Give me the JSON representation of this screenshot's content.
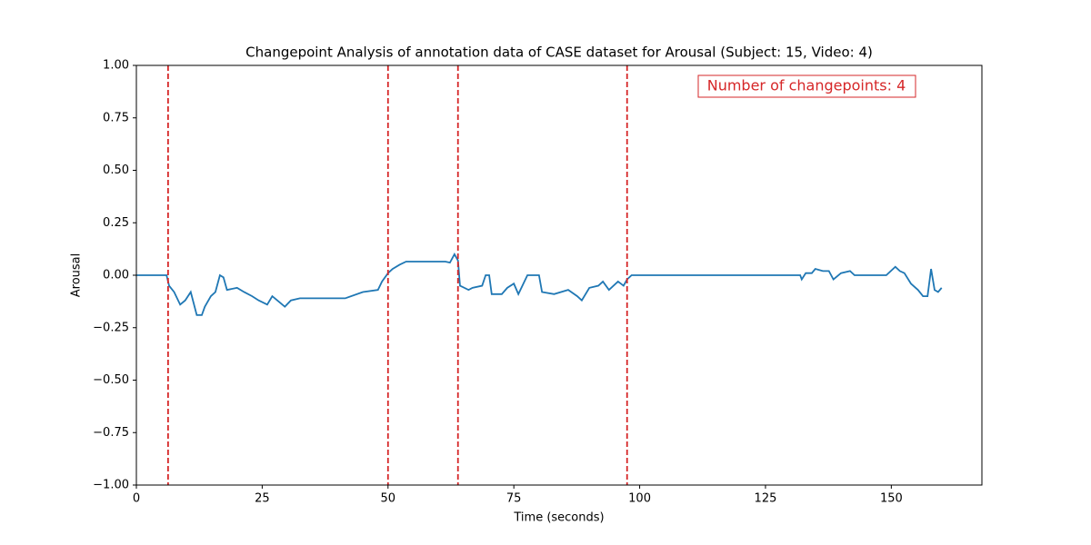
{
  "chart_data": {
    "type": "line",
    "title": "Changepoint Analysis of annotation data of CASE dataset for Arousal (Subject: 15, Video: 4)",
    "xlabel": "Time (seconds)",
    "ylabel": "Arousal",
    "annotation": "Number of changepoints: 4",
    "xlim": [
      0,
      168
    ],
    "ylim": [
      -1,
      1
    ],
    "xticks": [
      0,
      25,
      50,
      75,
      100,
      125,
      150
    ],
    "yticks": [
      {
        "value": -1,
        "label": "−1.00"
      },
      {
        "value": -0.75,
        "label": "−0.75"
      },
      {
        "value": -0.5,
        "label": "−0.50"
      },
      {
        "value": -0.25,
        "label": "−0.25"
      },
      {
        "value": 0,
        "label": "0.00"
      },
      {
        "value": 0.25,
        "label": "0.25"
      },
      {
        "value": 0.5,
        "label": "0.50"
      },
      {
        "value": 0.75,
        "label": "0.75"
      },
      {
        "value": 1,
        "label": "1.00"
      }
    ],
    "series": [
      {
        "color": "#1f77b4",
        "x": [
          0,
          6,
          6.5,
          7.5,
          8.7,
          9.7,
          10.8,
          12,
          13,
          13.6,
          14.8,
          15.7,
          16.6,
          17.3,
          18,
          20,
          21.4,
          23,
          24.3,
          26,
          27,
          28,
          29.5,
          30.7,
          32.5,
          41.5,
          45,
          48,
          48.8,
          50,
          50.9,
          52.3,
          53.6,
          61.4,
          62.3,
          63.2,
          63.9,
          64.3,
          66,
          66.8,
          68.7,
          69.4,
          70.1,
          70.6,
          72.6,
          73.7,
          75,
          75.9,
          77.7,
          80,
          80.6,
          83,
          85.8,
          87.6,
          88.5,
          90,
          91.8,
          92.7,
          93.9,
          95.7,
          96.8,
          97.5,
          98.4,
          131.9,
          132.2,
          133,
          134.2,
          134.9,
          136.4,
          137.6,
          138.5,
          140,
          141.8,
          142.7,
          149,
          150.8,
          151.7,
          152.6,
          153.9,
          155.3,
          156.3,
          157.2,
          157.9,
          158.6,
          159.3,
          160
        ],
        "values": [
          0,
          0,
          -0.05,
          -0.08,
          -0.14,
          -0.12,
          -0.08,
          -0.19,
          -0.19,
          -0.15,
          -0.1,
          -0.08,
          0,
          -0.01,
          -0.07,
          -0.06,
          -0.08,
          -0.1,
          -0.12,
          -0.14,
          -0.1,
          -0.12,
          -0.15,
          -0.12,
          -0.11,
          -0.11,
          -0.08,
          -0.07,
          -0.03,
          0.01,
          0.03,
          0.05,
          0.065,
          0.065,
          0.06,
          0.1,
          0.07,
          -0.05,
          -0.07,
          -0.06,
          -0.05,
          0,
          0,
          -0.09,
          -0.09,
          -0.06,
          -0.04,
          -0.09,
          0,
          0,
          -0.08,
          -0.09,
          -0.07,
          -0.1,
          -0.12,
          -0.06,
          -0.05,
          -0.03,
          -0.07,
          -0.03,
          -0.05,
          -0.02,
          0,
          0,
          -0.02,
          0.01,
          0.01,
          0.03,
          0.02,
          0.02,
          -0.02,
          0.01,
          0.02,
          0,
          0,
          0.04,
          0.02,
          0.01,
          -0.04,
          -0.07,
          -0.1,
          -0.1,
          0.03,
          -0.07,
          -0.08,
          -0.06
        ]
      }
    ],
    "changepoints": [
      6.3,
      50,
      63.9,
      97.5
    ],
    "changepoint_color": "#d62728"
  }
}
